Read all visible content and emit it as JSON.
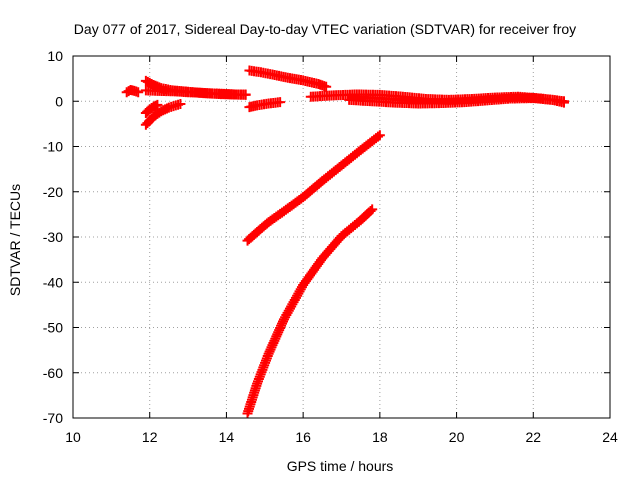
{
  "chart_data": {
    "type": "scatter",
    "title": "Day 077 of 2017, Sidereal Day-to-day VTEC variation (SDTVAR) for receiver froy",
    "xlabel": "GPS time / hours",
    "ylabel": "SDTVAR / TECUs",
    "xlim": [
      10,
      24
    ],
    "ylim": [
      -70,
      10
    ],
    "x_ticks": [
      10,
      12,
      14,
      16,
      18,
      20,
      22,
      24
    ],
    "y_ticks": [
      10,
      0,
      -10,
      -20,
      -30,
      -40,
      -50,
      -60,
      -70
    ],
    "grid": true,
    "legend": "none",
    "marker": "plus",
    "color": "#ff0000",
    "series": [
      {
        "x": [
          11.4,
          11.5,
          11.6,
          11.7
        ],
        "y": [
          2.0,
          2.5,
          2.3,
          2.0
        ]
      },
      {
        "x": [
          11.9,
          12.1,
          12.3,
          12.6,
          13.0,
          13.4,
          13.8,
          14.2,
          14.5
        ],
        "y": [
          4.5,
          3.6,
          2.9,
          2.4,
          2.1,
          1.8,
          1.6,
          1.5,
          1.5
        ]
      },
      {
        "x": [
          11.9,
          12.2,
          12.6,
          13.0,
          13.5,
          14.0,
          14.5
        ],
        "y": [
          2.4,
          2.3,
          2.2,
          2.0,
          1.8,
          1.6,
          1.4
        ]
      },
      {
        "x": [
          11.9,
          12.0,
          12.1,
          12.2
        ],
        "y": [
          -2.6,
          -1.8,
          -1.2,
          -0.8
        ]
      },
      {
        "x": [
          11.9,
          12.1,
          12.3,
          12.5,
          12.8
        ],
        "y": [
          -5.2,
          -3.4,
          -2.2,
          -1.4,
          -0.6
        ]
      },
      {
        "x": [
          14.6,
          14.9,
          15.2,
          15.6,
          16.0,
          16.4,
          16.6
        ],
        "y": [
          6.8,
          6.4,
          5.9,
          5.2,
          4.6,
          3.8,
          3.2
        ]
      },
      {
        "x": [
          14.6,
          14.8,
          15.1,
          15.4
        ],
        "y": [
          -1.3,
          -0.9,
          -0.5,
          -0.2
        ]
      },
      {
        "x": [
          16.2,
          16.8,
          17.4,
          18.0,
          18.6,
          19.2,
          19.8,
          20.4,
          21.0,
          21.6,
          22.2,
          22.8
        ],
        "y": [
          1.0,
          1.3,
          1.5,
          1.4,
          1.0,
          0.5,
          0.3,
          0.5,
          0.8,
          1.0,
          0.6,
          0.0
        ]
      },
      {
        "x": [
          17.2,
          17.8,
          18.4,
          19.0,
          19.6,
          20.2,
          20.8,
          21.4,
          22.0,
          22.5,
          22.8
        ],
        "y": [
          0.3,
          0.0,
          -0.3,
          -0.5,
          -0.4,
          -0.2,
          0.2,
          0.6,
          0.7,
          0.3,
          -0.3
        ]
      },
      {
        "x": [
          14.55,
          14.8,
          15.1,
          15.5,
          16.0,
          16.5,
          17.0,
          17.5,
          18.0
        ],
        "y": [
          -30.8,
          -28.9,
          -26.7,
          -24.3,
          -21.2,
          -17.6,
          -14.2,
          -10.8,
          -7.5
        ]
      },
      {
        "x": [
          14.55,
          14.8,
          15.1,
          15.5,
          16.0,
          16.5,
          17.0,
          17.5,
          17.8
        ],
        "y": [
          -69.0,
          -62.4,
          -55.8,
          -48.2,
          -40.6,
          -34.7,
          -29.8,
          -26.3,
          -23.9
        ]
      }
    ]
  }
}
